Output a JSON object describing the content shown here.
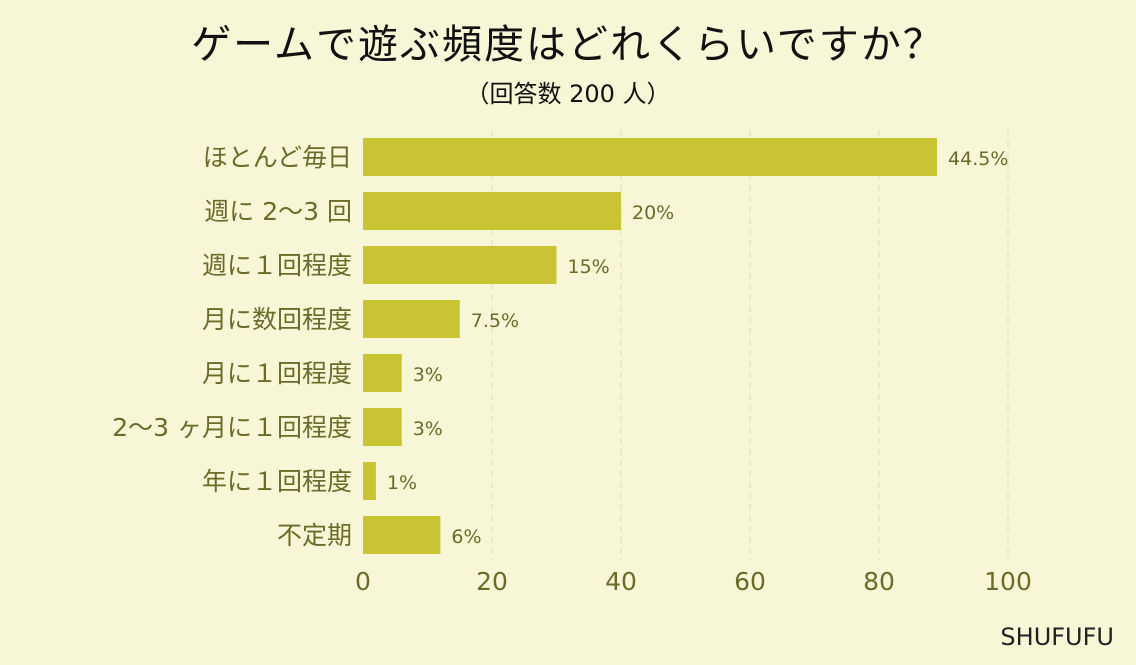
{
  "chart_data": {
    "type": "bar",
    "orientation": "horizontal",
    "title": "ゲームで遊ぶ頻度はどれくらいですか？",
    "subtitle": "（回答数 200 人）",
    "categories": [
      "ほとんど毎日",
      "週に 2〜3 回",
      "週に１回程度",
      "月に数回程度",
      "月に１回程度",
      "2〜3 ヶ月に１回程度",
      "年に１回程度",
      "不定期"
    ],
    "values": [
      89,
      40,
      30,
      15,
      6,
      6,
      2,
      12
    ],
    "value_labels": [
      "44.5%",
      "20%",
      "15%",
      "7.5%",
      "3%",
      "3%",
      "1%",
      "6%"
    ],
    "xlim": [
      0,
      100
    ],
    "x_ticks": [
      0,
      20,
      40,
      60,
      80,
      100
    ],
    "grid": "vertical-dashed",
    "bar_color": "#c9c434",
    "background": "#f7f6d6"
  },
  "brand": "SHUFUFU"
}
